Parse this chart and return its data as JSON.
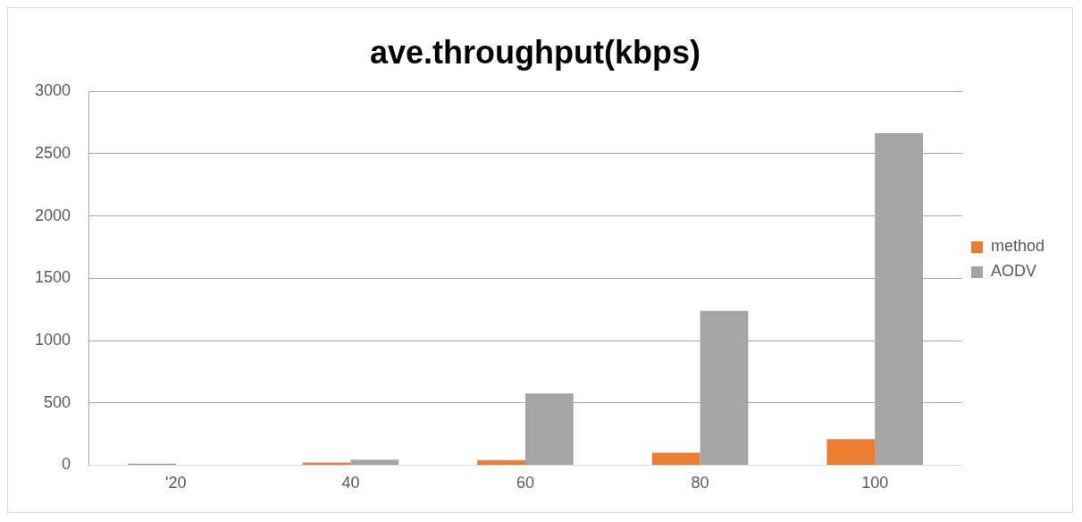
{
  "chart_data": {
    "type": "bar",
    "title": "ave.throughput(kbps)",
    "categories": [
      "'20",
      "40",
      "60",
      "80",
      "100"
    ],
    "series": [
      {
        "name": "method",
        "color": "#ed7d31",
        "values": [
          12,
          20,
          40,
          100,
          210
        ]
      },
      {
        "name": "AODV",
        "color": "#a5a5a5",
        "values": [
          0,
          45,
          575,
          1238,
          2665
        ]
      }
    ],
    "ylim": [
      0,
      3000
    ],
    "yticks": [
      0,
      500,
      1000,
      1500,
      2000,
      2500,
      3000
    ],
    "grid": "y",
    "legend": "right"
  }
}
